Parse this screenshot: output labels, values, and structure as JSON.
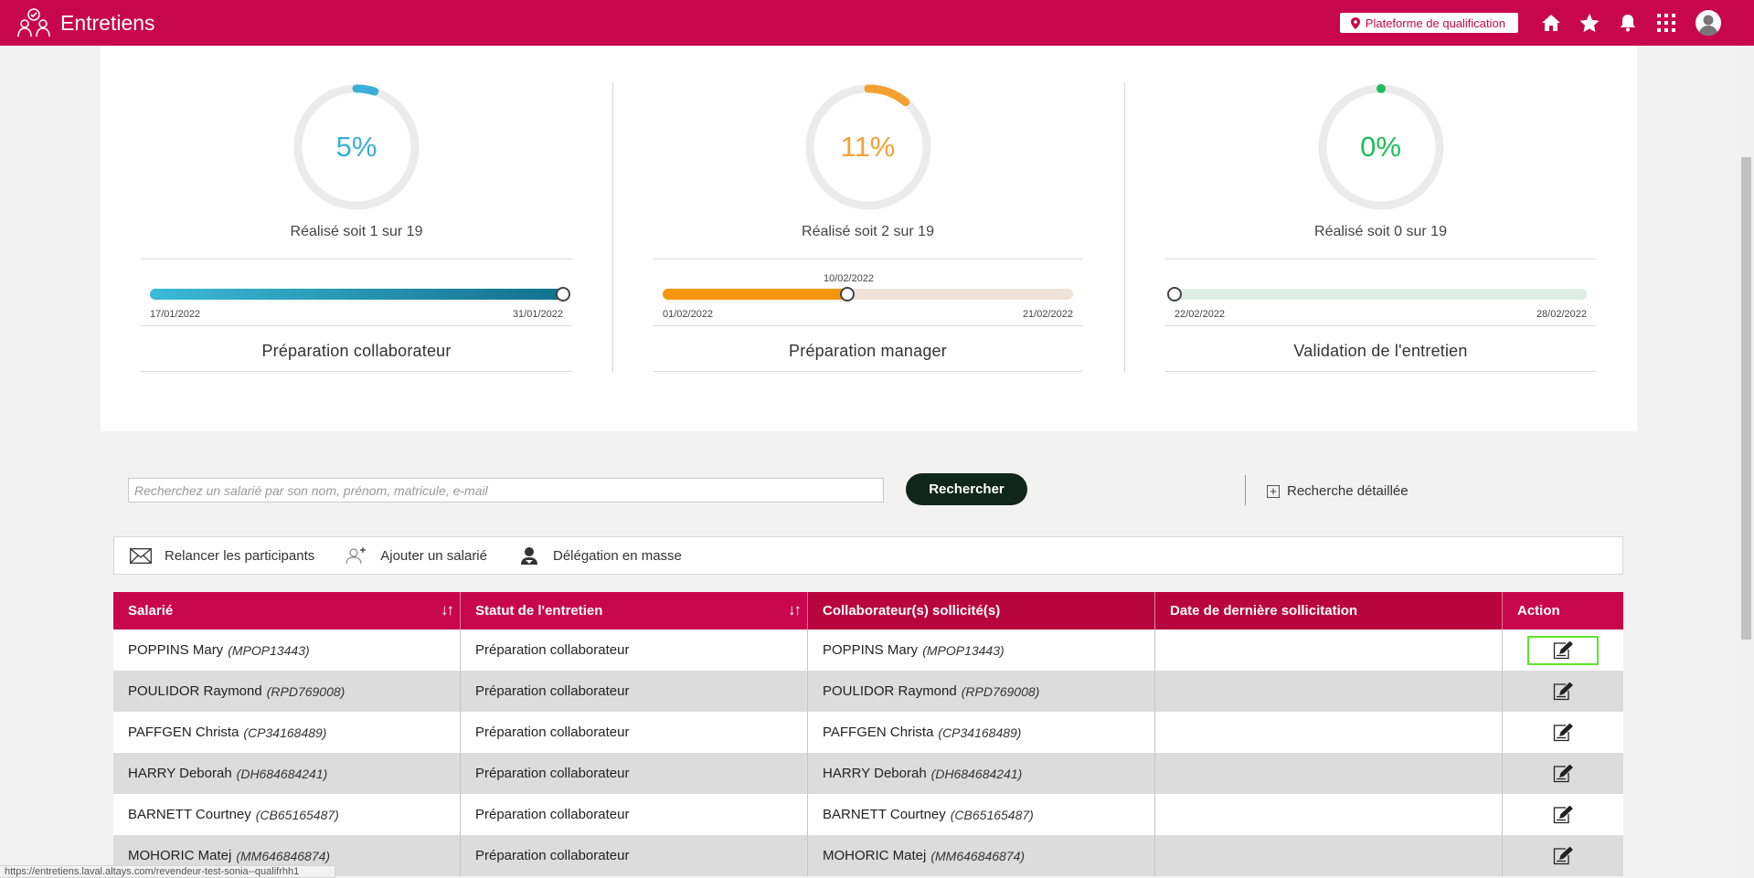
{
  "header": {
    "title": "Entretiens",
    "platform_label": "Plateforme de qualification",
    "icons": [
      "people-check-icon",
      "location-pin-icon",
      "home-icon",
      "star-icon",
      "bell-icon",
      "apps-grid-icon",
      "user-avatar-icon"
    ]
  },
  "stats": [
    {
      "percent": 0.05,
      "percent_label": "5%",
      "color": "#3aaed8",
      "realise": "Réalisé soit 1 sur 19",
      "start_date": "17/01/2022",
      "end_date": "31/01/2022",
      "progress": 1.0,
      "title": "Préparation collaborateur"
    },
    {
      "percent": 0.11,
      "percent_label": "11%",
      "color": "#f5a033",
      "realise": "Réalisé soit 2 sur 19",
      "start_date": "01/02/2022",
      "end_date": "21/02/2022",
      "current_date": "10/02/2022",
      "progress": 0.45,
      "title": "Préparation manager"
    },
    {
      "percent": 0.0,
      "percent_label": "0%",
      "color": "#1ebd5a",
      "realise": "Réalisé soit 0 sur 19",
      "start_date": "22/02/2022",
      "end_date": "28/02/2022",
      "progress": 0.0,
      "title": "Validation de l'entretien"
    }
  ],
  "search": {
    "placeholder": "Recherchez un salarié par son nom, prénom, matricule, e-mail",
    "button": "Rechercher",
    "advanced": "Recherche détaillée"
  },
  "toolbar": {
    "remind": "Relancer les participants",
    "add": "Ajouter un salarié",
    "delegate": "Délégation en masse"
  },
  "table": {
    "headers": [
      "Salarié",
      "Statut de l'entretien",
      "Collaborateur(s) sollicité(s)",
      "Date de dernière sollicitation",
      "Action"
    ],
    "rows": [
      {
        "name": "POPPINS Mary",
        "mat": "(MPOP13443)",
        "status": "Préparation collaborateur",
        "collab": "POPPINS Mary",
        "collab_mat": "(MPOP13443)",
        "date": ""
      },
      {
        "name": "POULIDOR Raymond",
        "mat": "(RPD769008)",
        "status": "Préparation collaborateur",
        "collab": "POULIDOR Raymond",
        "collab_mat": "(RPD769008)",
        "date": ""
      },
      {
        "name": "PAFFGEN Christa",
        "mat": "(CP34168489)",
        "status": "Préparation collaborateur",
        "collab": "PAFFGEN Christa",
        "collab_mat": "(CP34168489)",
        "date": ""
      },
      {
        "name": "HARRY Deborah",
        "mat": "(DH684684241)",
        "status": "Préparation collaborateur",
        "collab": "HARRY Deborah",
        "collab_mat": "(DH684684241)",
        "date": ""
      },
      {
        "name": "BARNETT Courtney",
        "mat": "(CB65165487)",
        "status": "Préparation collaborateur",
        "collab": "BARNETT Courtney",
        "collab_mat": "(CB65165487)",
        "date": ""
      },
      {
        "name": "MOHORIC Matej",
        "mat": "(MM646846874)",
        "status": "Préparation collaborateur",
        "collab": "MOHORIC Matej",
        "collab_mat": "(MM646846874)",
        "date": ""
      }
    ]
  },
  "status_url": "https://entretiens.laval.altays.com/revendeur-test-sonia--qualifrhh1"
}
